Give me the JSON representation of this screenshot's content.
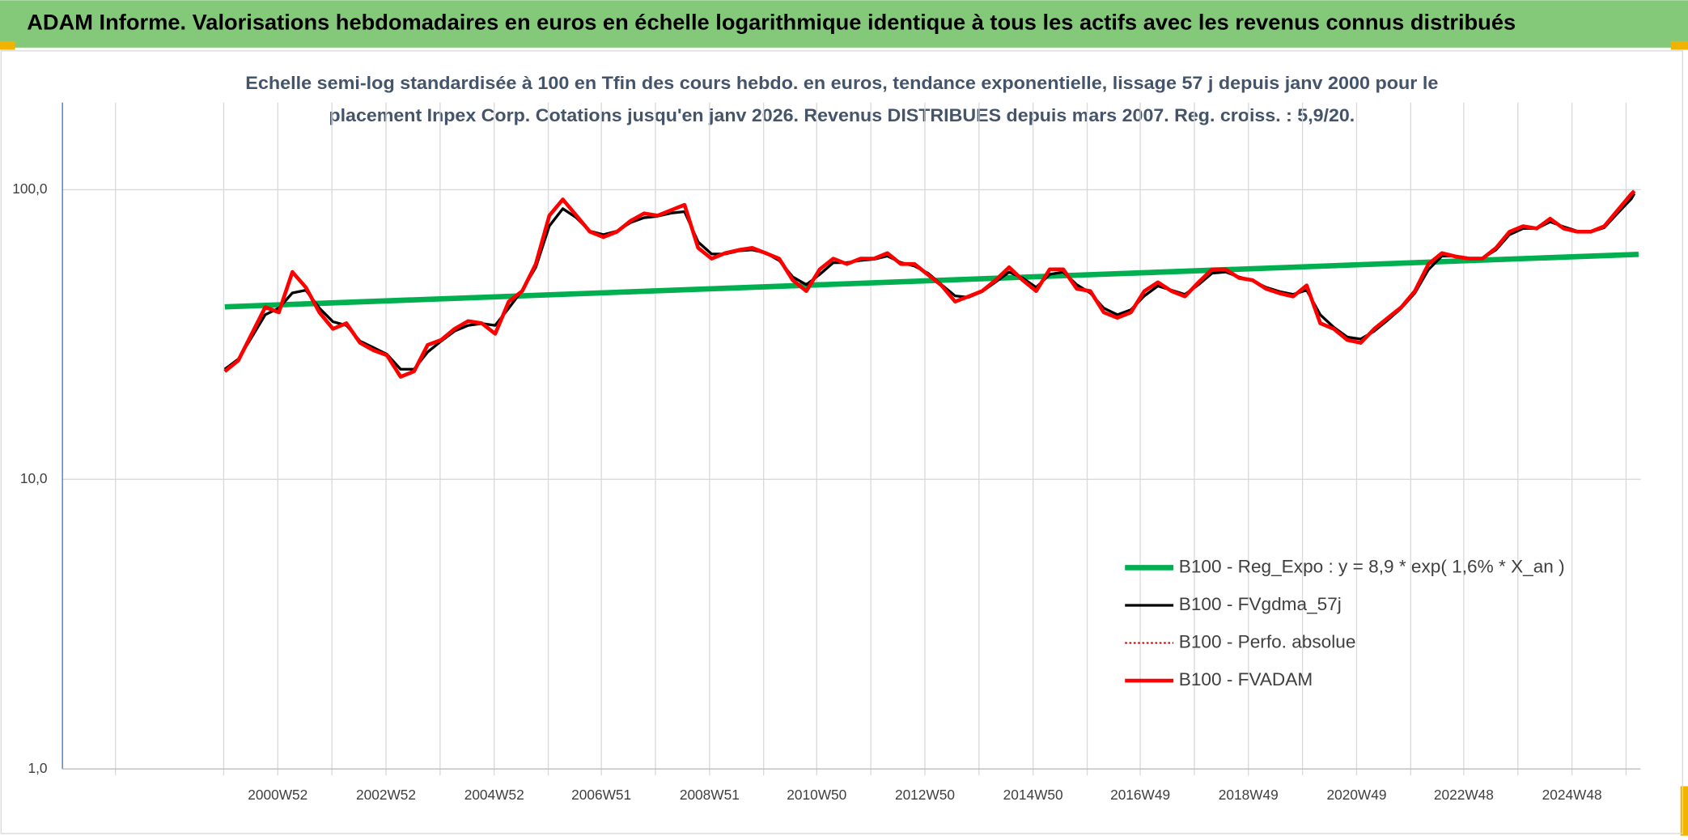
{
  "chart_data": {
    "type": "line",
    "title": "ADAM Informe. Valorisations hebdomadaires en euros en échelle logarithmique identique à tous les actifs avec les revenus connus distribués",
    "subtitle": [
      "Echelle semi-log standardisée à 100 en Tfin des cours hebdo. en euros, tendance exponentielle, lissage 57 j depuis janv 2000 pour le",
      "placement Inpex Corp. Cotations jusqu'en janv 2026. Revenus DISTRIBUES depuis mars 2007. Reg. croiss. : 5,9/20."
    ],
    "log_scale": true,
    "grid": true,
    "xlim": [
      "1997W01",
      "2026W10"
    ],
    "xticks": [
      "2000W52",
      "2002W52",
      "2004W52",
      "2006W51",
      "2008W51",
      "2010W50",
      "2012W50",
      "2014W50",
      "2016W49",
      "2018W49",
      "2020W49",
      "2022W48",
      "2024W48"
    ],
    "ylim": [
      1,
      200
    ],
    "yticks": [
      {
        "value": 1,
        "label": "1,0"
      },
      {
        "value": 10,
        "label": "10,0"
      },
      {
        "value": 100,
        "label": "100,0"
      }
    ],
    "x": [
      "2000W01",
      "2000W14",
      "2000W27",
      "2000W40",
      "2001W01",
      "2001W14",
      "2001W27",
      "2001W40",
      "2002W01",
      "2002W14",
      "2002W27",
      "2002W40",
      "2003W01",
      "2003W14",
      "2003W27",
      "2003W40",
      "2004W01",
      "2004W14",
      "2004W27",
      "2004W40",
      "2005W01",
      "2005W14",
      "2005W27",
      "2005W40",
      "2006W01",
      "2006W14",
      "2006W27",
      "2006W40",
      "2007W01",
      "2007W14",
      "2007W27",
      "2007W40",
      "2008W01",
      "2008W14",
      "2008W27",
      "2008W40",
      "2009W01",
      "2009W14",
      "2009W27",
      "2009W40",
      "2010W01",
      "2010W14",
      "2010W27",
      "2010W40",
      "2011W01",
      "2011W14",
      "2011W27",
      "2011W40",
      "2012W01",
      "2012W14",
      "2012W27",
      "2012W40",
      "2013W01",
      "2013W14",
      "2013W27",
      "2013W40",
      "2014W01",
      "2014W14",
      "2014W27",
      "2014W40",
      "2015W01",
      "2015W14",
      "2015W27",
      "2015W40",
      "2016W01",
      "2016W14",
      "2016W27",
      "2016W40",
      "2017W01",
      "2017W14",
      "2017W27",
      "2017W40",
      "2018W01",
      "2018W14",
      "2018W27",
      "2018W40",
      "2019W01",
      "2019W14",
      "2019W27",
      "2019W40",
      "2020W01",
      "2020W14",
      "2020W27",
      "2020W40",
      "2021W01",
      "2021W14",
      "2021W27",
      "2021W40",
      "2022W01",
      "2022W14",
      "2022W27",
      "2022W40",
      "2023W01",
      "2023W14",
      "2023W27",
      "2023W40",
      "2024W01",
      "2024W14",
      "2024W27",
      "2024W40",
      "2025W01",
      "2025W14",
      "2025W27",
      "2025W40",
      "2026W01",
      "2026W04"
    ],
    "series": [
      {
        "name": "B100 - Reg_Expo : y = 8,9 * exp( 1,6% *  X_an )",
        "color": "#00b050",
        "style": "solid",
        "width": 5,
        "x": [
          "2000W01",
          "2026W08"
        ],
        "values": [
          39.4,
          59.8
        ]
      },
      {
        "name": "B100 - FVgdma_57j",
        "color": "#000000",
        "style": "solid",
        "width": 2.5,
        "values": [
          24,
          26,
          31,
          37,
          39,
          44,
          45,
          39,
          35,
          34,
          30,
          28.5,
          27,
          24,
          24,
          27.5,
          30,
          32.5,
          34,
          34.5,
          34,
          39,
          45,
          54,
          75,
          86,
          80,
          72,
          70,
          72,
          77,
          80,
          81,
          83,
          84,
          66,
          60,
          60,
          61.5,
          62,
          60.5,
          57,
          50,
          47,
          51,
          56,
          56,
          57,
          57.5,
          59,
          56,
          54.5,
          51.5,
          47,
          43,
          42.5,
          44.5,
          48,
          52,
          49.5,
          46,
          51,
          52,
          47,
          44,
          39,
          37,
          38.5,
          43,
          46.5,
          45,
          43.5,
          47,
          51.5,
          52,
          50,
          48.5,
          46,
          44.5,
          43.5,
          45,
          37,
          33.5,
          31,
          30.5,
          32.5,
          35.5,
          39,
          44,
          53,
          59,
          59,
          58,
          58,
          62,
          70,
          73.5,
          73.5,
          77.5,
          74.5,
          72,
          71.5,
          74,
          83,
          93,
          97
        ]
      },
      {
        "name": "B100 - Perfo. absolue",
        "color": "#c00000",
        "style": "dotted",
        "width": 1.5,
        "values": [
          23.6,
          25.7,
          31.8,
          39.3,
          37.7,
          52,
          46,
          37.7,
          33.1,
          34.6,
          29.6,
          27.9,
          26.8,
          22.6,
          23.6,
          29.1,
          30.3,
          33.1,
          35.2,
          34.6,
          31.8,
          41.1,
          44.7,
          55.4,
          81.4,
          92.6,
          81.4,
          71.6,
          68.6,
          71.6,
          78,
          82.8,
          81.4,
          85,
          88.7,
          63,
          57.8,
          60.4,
          61.9,
          63,
          60.4,
          57.8,
          48.7,
          44.7,
          53.1,
          57.8,
          55.4,
          57.8,
          57.8,
          60.4,
          55.4,
          55.4,
          50.9,
          46.7,
          41.1,
          42.8,
          44.7,
          48.7,
          54,
          48.7,
          44.7,
          53.1,
          53.1,
          45.5,
          44.7,
          37.7,
          36.1,
          37.7,
          44.7,
          47.9,
          44.7,
          42.8,
          47.9,
          53.1,
          53.1,
          49.6,
          48.7,
          45.5,
          43.9,
          42.8,
          46.7,
          34.6,
          33.1,
          30.3,
          29.6,
          33.1,
          36.1,
          39.3,
          44.7,
          55.4,
          60.4,
          58.8,
          57.8,
          57.8,
          63,
          71.6,
          74.8,
          73.5,
          79.4,
          73.5,
          71.6,
          71.6,
          74.8,
          85,
          96.6,
          99
        ]
      },
      {
        "name": "B100 - FVADAM",
        "color": "#ff0000",
        "style": "solid",
        "width": 3.5,
        "values": [
          23.6,
          25.7,
          31.8,
          39.3,
          37.7,
          52,
          46,
          37.7,
          33.1,
          34.6,
          29.6,
          27.9,
          26.8,
          22.6,
          23.6,
          29.1,
          30.3,
          33.1,
          35.2,
          34.6,
          31.8,
          41.1,
          44.7,
          55.4,
          81.4,
          92.6,
          81.4,
          71.6,
          68.6,
          71.6,
          78,
          82.8,
          81.4,
          85,
          88.7,
          63,
          57.8,
          60.4,
          61.9,
          63,
          60.4,
          57.8,
          48.7,
          44.7,
          53.1,
          57.8,
          55.4,
          57.8,
          57.8,
          60.4,
          55.4,
          55.4,
          50.9,
          46.7,
          41.1,
          42.8,
          44.7,
          48.7,
          54,
          48.7,
          44.7,
          53.1,
          53.1,
          45.5,
          44.7,
          37.7,
          36.1,
          37.7,
          44.7,
          47.9,
          44.7,
          42.8,
          47.9,
          53.1,
          53.1,
          49.6,
          48.7,
          45.5,
          43.9,
          42.8,
          46.7,
          34.6,
          33.1,
          30.3,
          29.6,
          33.1,
          36.1,
          39.3,
          44.7,
          55.4,
          60.4,
          58.8,
          57.8,
          57.8,
          63,
          71.6,
          74.8,
          73.5,
          79.4,
          73.5,
          71.6,
          71.6,
          74.8,
          85,
          96.6,
          99
        ]
      }
    ]
  }
}
